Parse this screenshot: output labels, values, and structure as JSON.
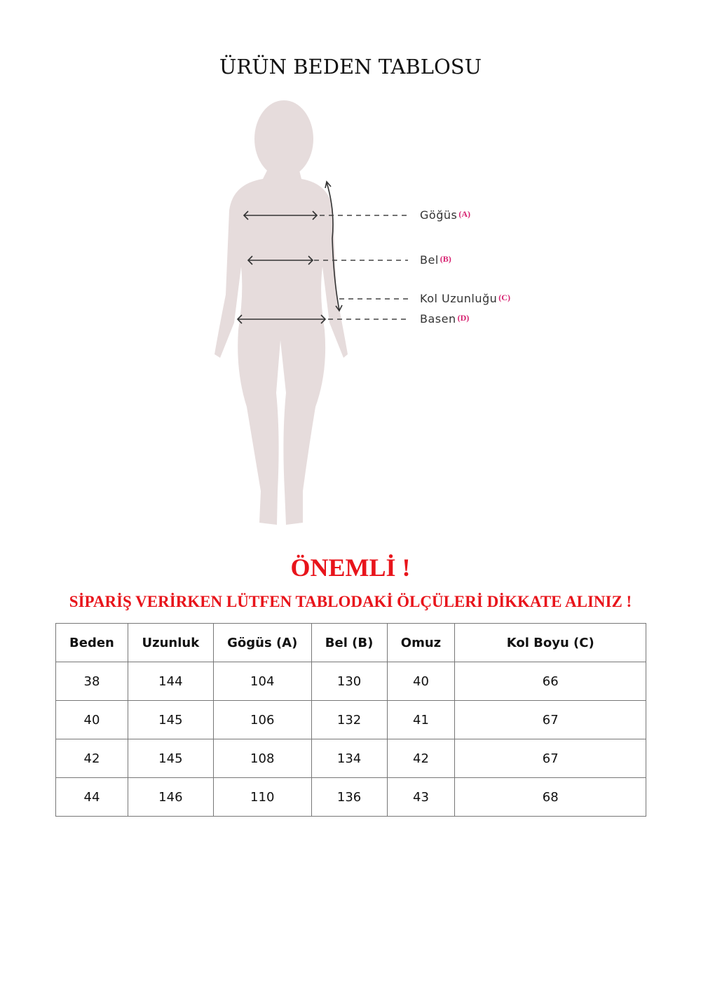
{
  "title": "ÜRÜN BEDEN TABLOSU",
  "figure": {
    "silhouette_color": "#e6dcdc",
    "labels": [
      {
        "text": "Göğüs",
        "code": "(A)"
      },
      {
        "text": "Bel",
        "code": "(B)"
      },
      {
        "text": "Kol Uzunluğu",
        "code": "(C)"
      },
      {
        "text": "Basen",
        "code": "(D)"
      }
    ]
  },
  "important": "ÖNEMLİ !",
  "notice": "SİPARİŞ VERİRKEN LÜTFEN TABLODAKİ ÖLÇÜLERİ DİKKATE ALINIZ !",
  "table": {
    "headers": [
      "Beden",
      "Uzunluk",
      "Gögüs (A)",
      "Bel (B)",
      "Omuz",
      "Kol Boyu (C)"
    ],
    "rows": [
      [
        "38",
        "144",
        "104",
        "130",
        "40",
        "66"
      ],
      [
        "40",
        "145",
        "106",
        "132",
        "41",
        "67"
      ],
      [
        "42",
        "145",
        "108",
        "134",
        "42",
        "67"
      ],
      [
        "44",
        "146",
        "110",
        "136",
        "43",
        "68"
      ]
    ]
  }
}
